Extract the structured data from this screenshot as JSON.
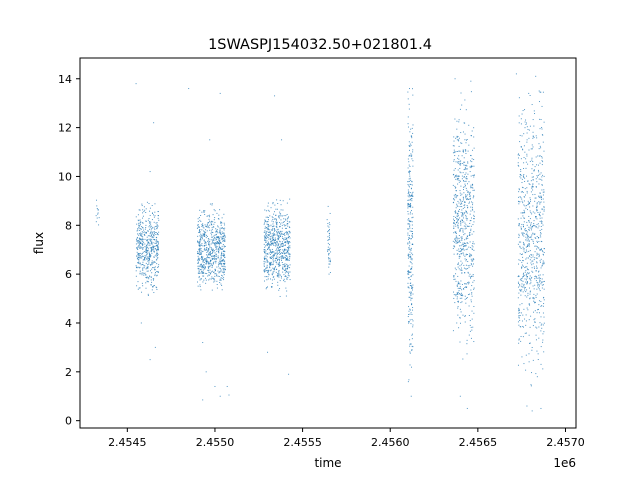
{
  "chart_data": {
    "type": "scatter",
    "title": "1SWASPJ154032.50+021801.4",
    "xlabel": "time",
    "ylabel": "flux",
    "x_offset_label": "1e6",
    "xlim": [
      2.45423,
      2.45706
    ],
    "ylim": [
      -0.3,
      14.85
    ],
    "x_ticks": [
      2.4545,
      2.455,
      2.4555,
      2.456,
      2.4565,
      2.457
    ],
    "x_tick_labels": [
      "2.4545",
      "2.4550",
      "2.4555",
      "2.4560",
      "2.4565",
      "2.4570"
    ],
    "y_ticks": [
      0,
      2,
      4,
      6,
      8,
      10,
      12,
      14
    ],
    "y_tick_labels": [
      "0",
      "2",
      "4",
      "6",
      "8",
      "10",
      "12",
      "14"
    ],
    "grid": false,
    "marker_color": "#1f77b4",
    "clusters": [
      {
        "x_start": 2.45432,
        "x_end": 2.45434,
        "y_low": 7.6,
        "y_high": 9.1,
        "n": 12
      },
      {
        "x_start": 2.45455,
        "x_end": 2.45468,
        "y_low": 5.4,
        "y_high": 8.8,
        "n": 500
      },
      {
        "x_start": 2.4549,
        "x_end": 2.45506,
        "y_low": 5.3,
        "y_high": 8.6,
        "n": 650
      },
      {
        "x_start": 2.45528,
        "x_end": 2.45543,
        "y_low": 5.4,
        "y_high": 8.9,
        "n": 650
      },
      {
        "x_start": 2.45564,
        "x_end": 2.45566,
        "y_low": 5.3,
        "y_high": 9.0,
        "n": 45
      },
      {
        "x_start": 2.4561,
        "x_end": 2.45613,
        "y_low": 2.0,
        "y_high": 13.0,
        "n": 280
      },
      {
        "x_start": 2.45636,
        "x_end": 2.45648,
        "y_low": 3.0,
        "y_high": 13.0,
        "n": 650
      },
      {
        "x_start": 2.45673,
        "x_end": 2.45688,
        "y_low": 2.0,
        "y_high": 13.0,
        "n": 750
      }
    ],
    "outliers": [
      [
        2.45455,
        13.8
      ],
      [
        2.45465,
        12.2
      ],
      [
        2.45463,
        10.2
      ],
      [
        2.45463,
        2.5
      ],
      [
        2.45458,
        4.0
      ],
      [
        2.45466,
        3.0
      ],
      [
        2.45485,
        13.6
      ],
      [
        2.45503,
        13.4
      ],
      [
        2.45497,
        11.5
      ],
      [
        2.45495,
        2.0
      ],
      [
        2.455,
        1.4
      ],
      [
        2.45503,
        1.0
      ],
      [
        2.45507,
        1.4
      ],
      [
        2.45508,
        1.05
      ],
      [
        2.45493,
        0.85
      ],
      [
        2.45493,
        3.2
      ],
      [
        2.45534,
        13.3
      ],
      [
        2.45538,
        11.5
      ],
      [
        2.4553,
        2.8
      ],
      [
        2.45542,
        1.9
      ],
      [
        2.45611,
        13.6
      ],
      [
        2.45612,
        1.0
      ],
      [
        2.45637,
        14.0
      ],
      [
        2.45646,
        13.9
      ],
      [
        2.4564,
        1.0
      ],
      [
        2.45644,
        0.5
      ],
      [
        2.45672,
        14.2
      ],
      [
        2.45679,
        13.4
      ],
      [
        2.45683,
        14.1
      ],
      [
        2.45685,
        13.5
      ],
      [
        2.45678,
        0.6
      ],
      [
        2.45681,
        0.4
      ],
      [
        2.45686,
        0.5
      ]
    ]
  }
}
